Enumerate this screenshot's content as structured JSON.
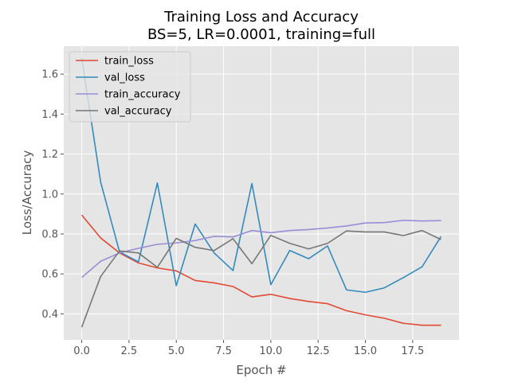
{
  "chart_data": {
    "type": "line",
    "title": "Training Loss and Accuracy",
    "subtitle": "BS=5, LR=0.0001, training=full",
    "xlabel": "Epoch #",
    "ylabel": "Loss/Accuracy",
    "xlim": [
      -0.95,
      19.95
    ],
    "ylim": [
      0.27,
      1.74
    ],
    "xticks": [
      0.0,
      2.5,
      5.0,
      7.5,
      10.0,
      12.5,
      15.0,
      17.5
    ],
    "xtick_labels": [
      "0.0",
      "2.5",
      "5.0",
      "7.5",
      "10.0",
      "12.5",
      "15.0",
      "17.5"
    ],
    "yticks": [
      0.4,
      0.6,
      0.8,
      1.0,
      1.2,
      1.4,
      1.6
    ],
    "ytick_labels": [
      "0.4",
      "0.6",
      "0.8",
      "1.0",
      "1.2",
      "1.4",
      "1.6"
    ],
    "grid": true,
    "legend_position": "top-left",
    "x": [
      0,
      1,
      2,
      3,
      4,
      5,
      6,
      7,
      8,
      9,
      10,
      11,
      12,
      13,
      14,
      15,
      16,
      17,
      18,
      19
    ],
    "series": [
      {
        "name": "train_loss",
        "color": "#E24A33",
        "values": [
          0.895,
          0.78,
          0.705,
          0.655,
          0.63,
          0.615,
          0.567,
          0.555,
          0.537,
          0.485,
          0.498,
          0.477,
          0.462,
          0.451,
          0.416,
          0.395,
          0.378,
          0.353,
          0.343,
          0.343
        ]
      },
      {
        "name": "val_loss",
        "color": "#348ABD",
        "values": [
          1.68,
          1.06,
          0.71,
          0.66,
          1.055,
          0.541,
          0.85,
          0.705,
          0.617,
          1.052,
          0.546,
          0.717,
          0.676,
          0.74,
          0.52,
          0.508,
          0.53,
          0.581,
          0.636,
          0.787
        ]
      },
      {
        "name": "train_accuracy",
        "color": "#988ED5",
        "values": [
          0.582,
          0.663,
          0.705,
          0.728,
          0.748,
          0.755,
          0.767,
          0.788,
          0.785,
          0.817,
          0.806,
          0.817,
          0.822,
          0.83,
          0.84,
          0.855,
          0.857,
          0.868,
          0.865,
          0.867
        ]
      },
      {
        "name": "val_accuracy",
        "color": "#777777",
        "values": [
          0.333,
          0.587,
          0.715,
          0.705,
          0.633,
          0.778,
          0.733,
          0.717,
          0.776,
          0.651,
          0.793,
          0.753,
          0.725,
          0.753,
          0.815,
          0.81,
          0.81,
          0.792,
          0.817,
          0.772
        ]
      }
    ]
  }
}
